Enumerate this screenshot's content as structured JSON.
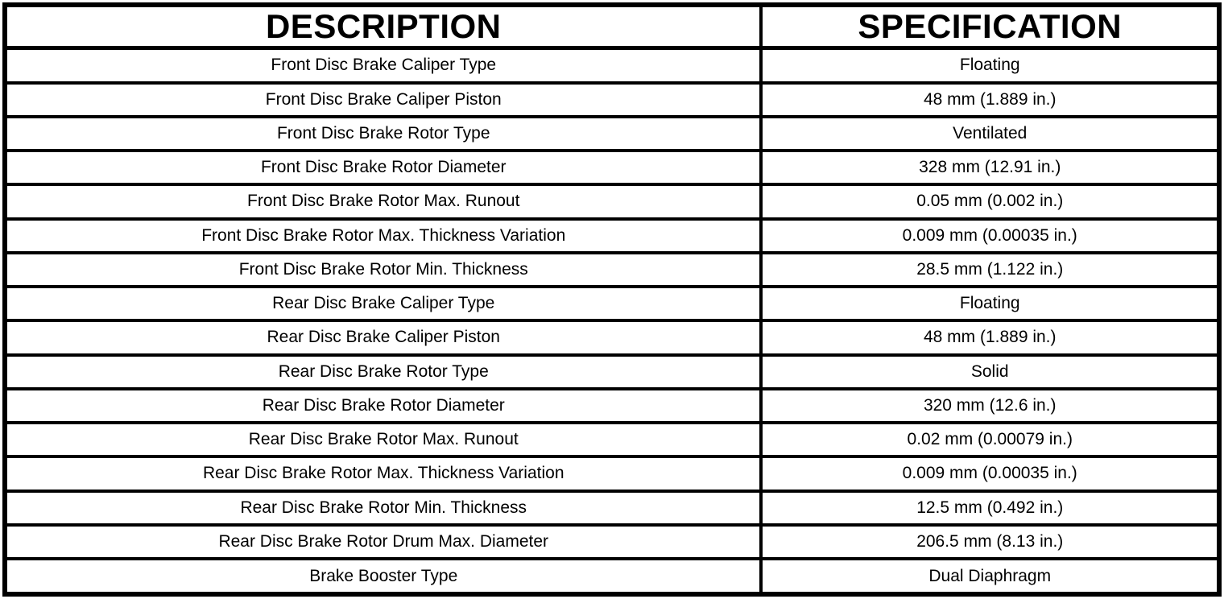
{
  "page": {
    "background_color": "#ffffff",
    "border_color": "#000000",
    "text_color": "#000000"
  },
  "table": {
    "headers": [
      {
        "label": "DESCRIPTION"
      },
      {
        "label": "SPECIFICATION"
      }
    ],
    "rows": [
      {
        "description": "Front Disc Brake Caliper Type",
        "specification": "Floating"
      },
      {
        "description": "Front Disc Brake Caliper Piston",
        "specification": "48 mm (1.889 in.)"
      },
      {
        "description": "Front Disc Brake Rotor Type",
        "specification": "Ventilated"
      },
      {
        "description": "Front Disc Brake Rotor Diameter",
        "specification": "328 mm (12.91 in.)"
      },
      {
        "description": "Front Disc Brake Rotor Max. Runout",
        "specification": "0.05 mm (0.002 in.)"
      },
      {
        "description": "Front Disc Brake Rotor Max. Thickness Variation",
        "specification": "0.009 mm (0.00035 in.)"
      },
      {
        "description": "Front Disc Brake Rotor Min. Thickness",
        "specification": "28.5 mm (1.122 in.)"
      },
      {
        "description": "Rear Disc Brake Caliper Type",
        "specification": "Floating"
      },
      {
        "description": "Rear Disc Brake Caliper Piston",
        "specification": "48 mm (1.889 in.)"
      },
      {
        "description": "Rear Disc Brake Rotor Type",
        "specification": "Solid"
      },
      {
        "description": "Rear Disc Brake Rotor Diameter",
        "specification": "320 mm (12.6 in.)"
      },
      {
        "description": "Rear Disc Brake Rotor Max. Runout",
        "specification": "0.02 mm (0.00079 in.)"
      },
      {
        "description": "Rear Disc Brake Rotor Max. Thickness Variation",
        "specification": "0.009 mm (0.00035 in.)"
      },
      {
        "description": "Rear Disc Brake Rotor Min. Thickness",
        "specification": "12.5 mm (0.492 in.)"
      },
      {
        "description": "Rear Disc Brake Rotor Drum Max. Diameter",
        "specification": "206.5 mm (8.13 in.)"
      },
      {
        "description": "Brake Booster Type",
        "specification": "Dual Diaphragm"
      }
    ]
  }
}
